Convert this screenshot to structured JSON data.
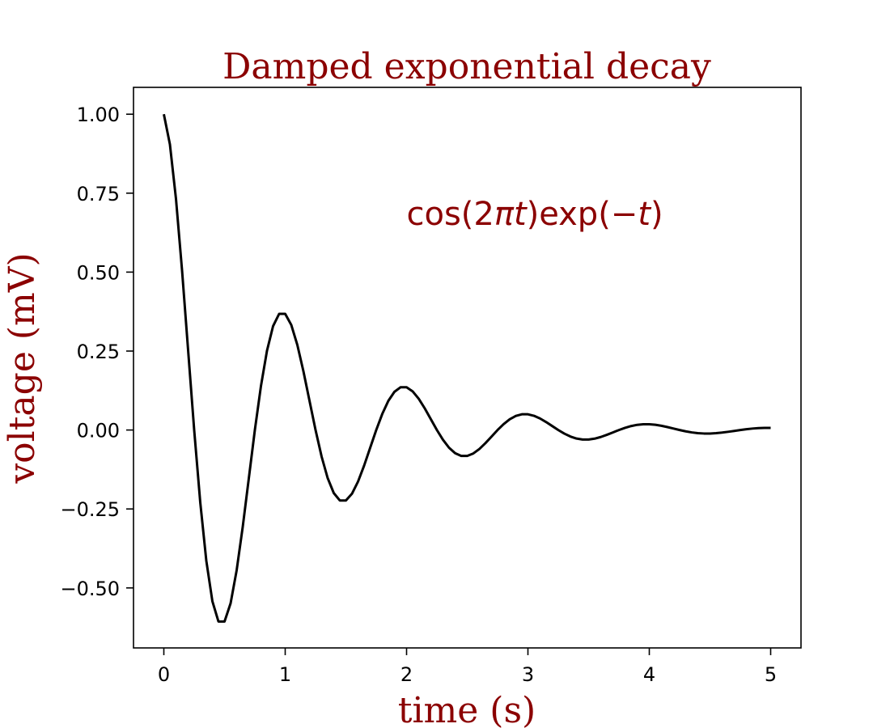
{
  "chart_data": {
    "type": "line",
    "title": "Damped exponential decay",
    "xlabel": "time (s)",
    "ylabel": "voltage (mV)",
    "annotation": {
      "parts": [
        "cos(2",
        "πt",
        ")exp(−",
        "t",
        ")"
      ],
      "x": 2.0,
      "y": 0.65
    },
    "xlim": [
      -0.25,
      5.25
    ],
    "ylim": [
      -0.69,
      1.085
    ],
    "xticks": [
      0,
      1,
      2,
      3,
      4,
      5
    ],
    "xtick_labels": [
      "0",
      "1",
      "2",
      "3",
      "4",
      "5"
    ],
    "yticks": [
      -0.5,
      -0.25,
      0,
      0.25,
      0.5,
      0.75,
      1.0
    ],
    "ytick_labels": [
      "−0.50",
      "−0.25",
      "0.00",
      "0.25",
      "0.50",
      "0.75",
      "1.00"
    ],
    "grid": false,
    "series": [
      {
        "function": "cos(2πt)·exp(−t)",
        "x_start": 0,
        "x_end": 5,
        "n_points": 101,
        "color": "#000000"
      }
    ]
  },
  "colors": {
    "label": "#8b0000",
    "line": "#000000",
    "axes": "#000000"
  }
}
